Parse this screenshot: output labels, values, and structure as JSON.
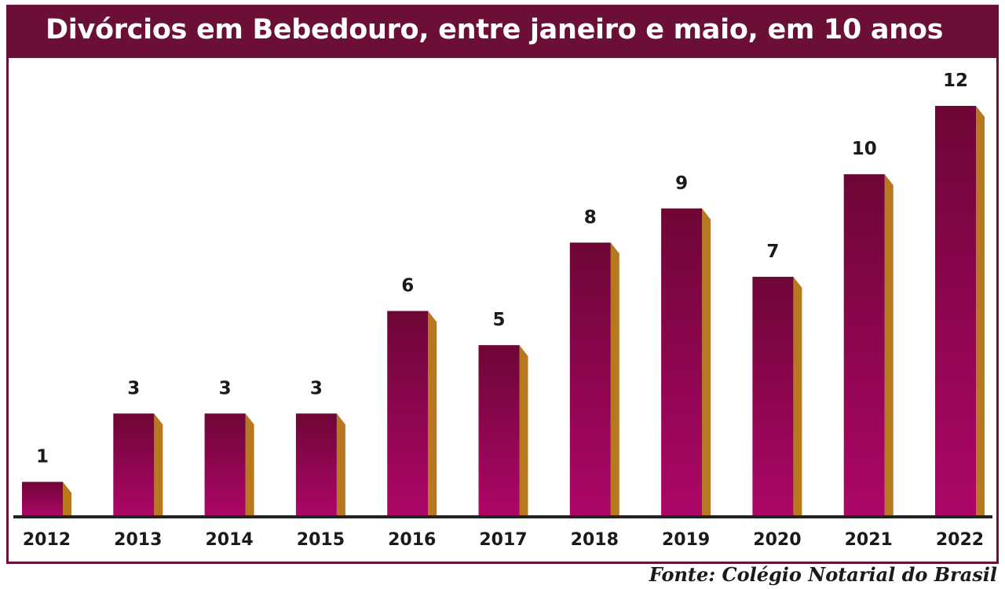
{
  "header": {
    "title": "Divórcios em Bebedouro, entre janeiro e maio, em 10 anos"
  },
  "source": "Fonte: Colégio Notarial do Brasil",
  "colors": {
    "title_background": "#6b0f36",
    "bar_top": "#6e0636",
    "bar_bottom": "#ad0668",
    "bar_side": "#b8781e",
    "baseline": "#222222"
  },
  "chart_data": {
    "type": "bar",
    "title": "Divórcios em Bebedouro, entre janeiro e maio, em 10 anos",
    "categories": [
      "2012",
      "2013",
      "2014",
      "2015",
      "2016",
      "2017",
      "2018",
      "2019",
      "2020",
      "2021",
      "2022"
    ],
    "values": [
      1,
      3,
      3,
      3,
      6,
      5,
      8,
      9,
      7,
      10,
      12
    ],
    "ylim": [
      0,
      12
    ],
    "grid": false,
    "legend": "none"
  }
}
